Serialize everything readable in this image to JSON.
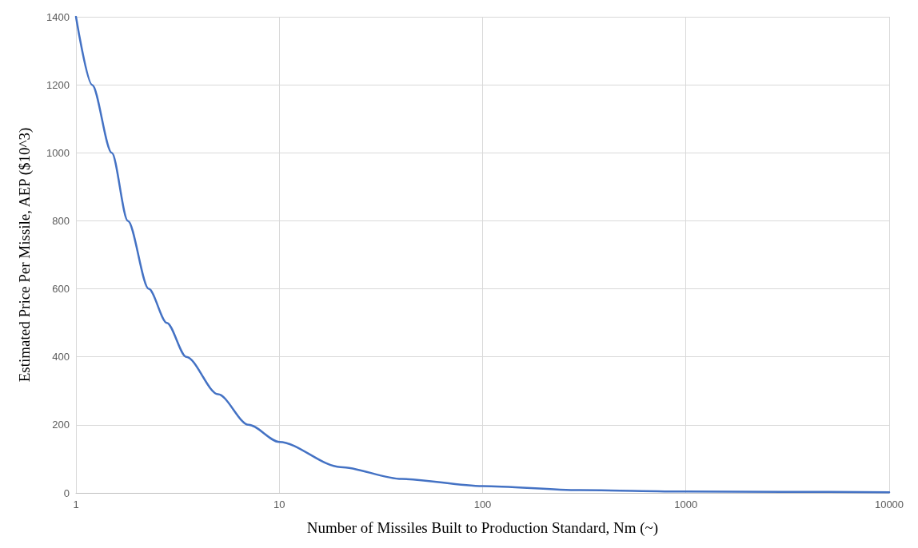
{
  "chart_data": {
    "type": "line",
    "xlabel": "Number of Missiles Built to Production Standard, Nm (~)",
    "ylabel": "Estimated Price Per Missile, AEP ($10^3)",
    "x": [
      1,
      1.2,
      1.5,
      1.8,
      2.28,
      2.8,
      3.49,
      5,
      7.07,
      10,
      20,
      40,
      100,
      300,
      1000,
      3000,
      10000
    ],
    "series": [
      {
        "color": "#4472c4",
        "values": [
          1400,
          1200,
          1000,
          800,
          600,
          500,
          400,
          290,
          200,
          150,
          76,
          41,
          20,
          8,
          4,
          3,
          2
        ]
      }
    ],
    "xlim": [
      1,
      10000
    ],
    "xticks": [
      1,
      10,
      100,
      1000,
      10000
    ],
    "ylim": [
      0,
      1400
    ],
    "yticks": [
      0,
      200,
      400,
      600,
      800,
      1000,
      1200,
      1400
    ],
    "log": "x",
    "grid": true,
    "marker": "none",
    "line_style": "solid"
  }
}
